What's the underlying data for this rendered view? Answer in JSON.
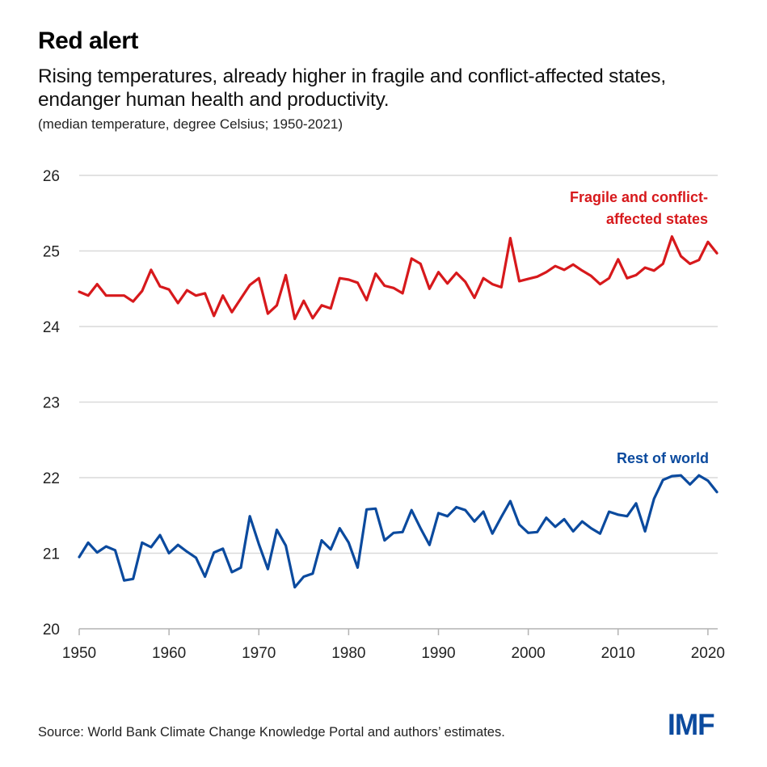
{
  "header": {
    "title": "Red alert",
    "subtitle": "Rising temperatures, already higher in fragile and conflict-affected states, endanger human health and productivity.",
    "units": "(median temperature, degree Celsius; 1950-2021)"
  },
  "footer": {
    "source": "Source: World Bank Climate Change Knowledge Portal and authors’ estimates.",
    "logo": "IMF"
  },
  "colors": {
    "fragile": "#d7191c",
    "rest": "#0b4a9e",
    "grid": "#d9d9d9",
    "axis": "#b3b3b3"
  },
  "chart_data": {
    "type": "line",
    "title": "Red alert",
    "subtitle": "Rising temperatures, already higher in fragile and conflict-affected states, endanger human health and productivity.",
    "xlabel": "",
    "ylabel": "median temperature, degree Celsius",
    "xlim": [
      1950,
      2021
    ],
    "ylim": [
      20,
      26
    ],
    "xticks": [
      1950,
      1960,
      1970,
      1980,
      1990,
      2000,
      2010,
      2020
    ],
    "xtick_labels": [
      "1950",
      "1960",
      "1970",
      "1980",
      "1990",
      "2000",
      "2010",
      "2020"
    ],
    "yticks": [
      20,
      21,
      22,
      23,
      24,
      25,
      26
    ],
    "ytick_labels": [
      "20",
      "21",
      "22",
      "23",
      "24",
      "25",
      "26"
    ],
    "grid": true,
    "legend": "direct-labels",
    "x": [
      1950,
      1951,
      1952,
      1953,
      1954,
      1955,
      1956,
      1957,
      1958,
      1959,
      1960,
      1961,
      1962,
      1963,
      1964,
      1965,
      1966,
      1967,
      1968,
      1969,
      1970,
      1971,
      1972,
      1973,
      1974,
      1975,
      1976,
      1977,
      1978,
      1979,
      1980,
      1981,
      1982,
      1983,
      1984,
      1985,
      1986,
      1987,
      1988,
      1989,
      1990,
      1991,
      1992,
      1993,
      1994,
      1995,
      1996,
      1997,
      1998,
      1999,
      2000,
      2001,
      2002,
      2003,
      2004,
      2005,
      2006,
      2007,
      2008,
      2009,
      2010,
      2011,
      2012,
      2013,
      2014,
      2015,
      2016,
      2017,
      2018,
      2019,
      2020,
      2021
    ],
    "series": [
      {
        "name": "Fragile and conflict-affected states",
        "label_lines": [
          "Fragile and conflict-",
          "affected states"
        ],
        "color": "#d7191c",
        "values": [
          24.46,
          24.41,
          24.56,
          24.41,
          24.41,
          24.41,
          24.33,
          24.47,
          24.75,
          24.53,
          24.49,
          24.31,
          24.48,
          24.41,
          24.44,
          24.14,
          24.41,
          24.19,
          24.37,
          24.55,
          24.64,
          24.17,
          24.28,
          24.68,
          24.1,
          24.34,
          24.11,
          24.28,
          24.24,
          24.64,
          24.62,
          24.58,
          24.35,
          24.7,
          24.54,
          24.51,
          24.44,
          24.9,
          24.83,
          24.5,
          24.72,
          24.57,
          24.71,
          24.59,
          24.38,
          24.64,
          24.56,
          24.52,
          25.17,
          24.6,
          24.63,
          24.66,
          24.72,
          24.8,
          24.75,
          24.82,
          24.74,
          24.67,
          24.56,
          24.64,
          24.89,
          24.64,
          24.68,
          24.78,
          24.74,
          24.83,
          25.19,
          24.93,
          24.83,
          24.88,
          25.12,
          24.97
        ]
      },
      {
        "name": "Rest of world",
        "label_lines": [
          "Rest of world"
        ],
        "color": "#0b4a9e",
        "values": [
          20.95,
          21.14,
          21.01,
          21.09,
          21.04,
          20.64,
          20.66,
          21.14,
          21.08,
          21.24,
          21.0,
          21.11,
          21.02,
          20.94,
          20.69,
          21.01,
          21.06,
          20.75,
          20.81,
          21.49,
          21.12,
          20.79,
          21.31,
          21.1,
          20.55,
          20.69,
          20.73,
          21.17,
          21.05,
          21.33,
          21.14,
          20.81,
          21.58,
          21.59,
          21.17,
          21.27,
          21.28,
          21.57,
          21.33,
          21.11,
          21.53,
          21.49,
          21.61,
          21.57,
          21.42,
          21.55,
          21.26,
          21.48,
          21.69,
          21.38,
          21.27,
          21.28,
          21.47,
          21.35,
          21.45,
          21.29,
          21.42,
          21.33,
          21.26,
          21.55,
          21.51,
          21.49,
          21.66,
          21.29,
          21.72,
          21.97,
          22.02,
          22.03,
          21.91,
          22.03,
          21.96,
          21.81
        ]
      }
    ]
  }
}
